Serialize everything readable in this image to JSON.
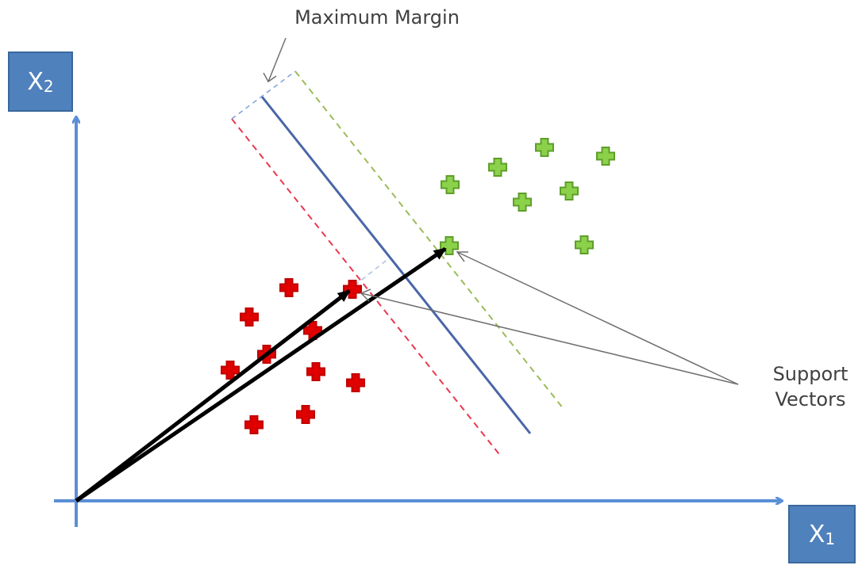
{
  "axes": {
    "x_label_main": "X",
    "x_label_sub": "1",
    "y_label_main": "X",
    "y_label_sub": "2",
    "color": "#5b8fd6",
    "box_color": "#4f81bd"
  },
  "annotations": {
    "max_margin": "Maximum Margin",
    "support_vectors_line1": "Support",
    "support_vectors_line2": "Vectors"
  },
  "colors": {
    "hyperplane": "#4a66a8",
    "negative_margin": "#e8384f",
    "positive_margin": "#9bbb59",
    "negative_class": "#e00000",
    "positive_class": "#8bd14a",
    "vectors": "#000000",
    "pointer": "#707070"
  },
  "negative_points": [
    [
      364,
      363
    ],
    [
      314,
      400
    ],
    [
      444,
      365
    ],
    [
      394,
      417
    ],
    [
      336,
      447
    ],
    [
      290,
      467
    ],
    [
      398,
      469
    ],
    [
      448,
      483
    ],
    [
      320,
      536
    ],
    [
      385,
      523
    ]
  ],
  "positive_points": [
    [
      686,
      186
    ],
    [
      763,
      197
    ],
    [
      627,
      211
    ],
    [
      567,
      233
    ],
    [
      717,
      241
    ],
    [
      658,
      255
    ],
    [
      566,
      310
    ],
    [
      736,
      309
    ]
  ],
  "support_vectors": {
    "negative": [
      444,
      365
    ],
    "positive": [
      566,
      310
    ]
  }
}
